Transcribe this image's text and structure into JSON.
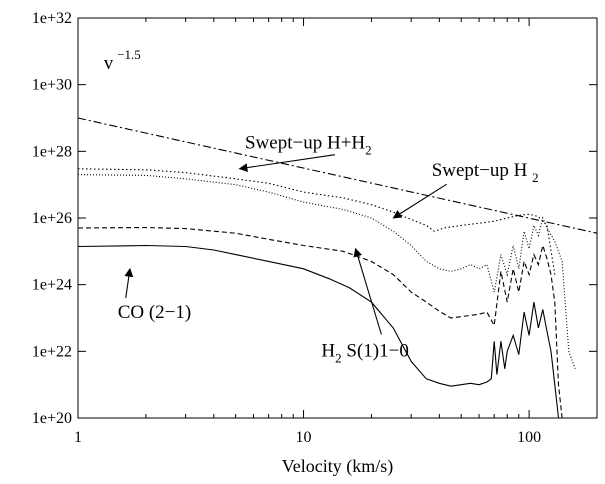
{
  "chart_data": {
    "type": "line",
    "xlabel": "Velocity (km/s)",
    "x_scale": "log",
    "y_scale": "log",
    "xlim": [
      1,
      200
    ],
    "ylim": [
      1e+20,
      1e+32
    ],
    "x_ticks": [
      1,
      10,
      100
    ],
    "x_tick_labels": [
      "1",
      "10",
      "100"
    ],
    "y_ticks": [
      1e+20,
      1e+22,
      1e+24,
      1e+26,
      1e+28,
      1e+30,
      1e+32
    ],
    "y_tick_labels": [
      "1e+20",
      "1e+22",
      "1e+24",
      "1e+26",
      "1e+28",
      "1e+30",
      "1e+32"
    ],
    "grid": false,
    "series": [
      {
        "id": "powerlaw",
        "style": "dashdot",
        "color": "#000000",
        "x": [
          1,
          200
        ],
        "y": [
          1e+29,
          3.5e+25
        ]
      },
      {
        "id": "swept_total",
        "style": "dense-dotted",
        "color": "#000000",
        "x": [
          1,
          2,
          3,
          5,
          7,
          10,
          15,
          20,
          25,
          30,
          35,
          38,
          42,
          50,
          60,
          70,
          80,
          90,
          100,
          110,
          120,
          130
        ],
        "y": [
          3e+27,
          2.8e+27,
          2.3e+27,
          1.5e+27,
          1.1e+27,
          6e+26,
          4e+26,
          2.5e+26,
          1.5e+26,
          9e+25,
          6e+25,
          4e+25,
          5e+25,
          6e+25,
          7e+25,
          8e+25,
          1e+26,
          1.2e+26,
          1.3e+26,
          1.1e+26,
          6e+25,
          2e+24
        ]
      },
      {
        "id": "swept_h2",
        "style": "dotted",
        "color": "#000000",
        "x": [
          1,
          2,
          3,
          5,
          7,
          10,
          15,
          20,
          25,
          30,
          35,
          40,
          45,
          50,
          55,
          60,
          65,
          70,
          75,
          80,
          85,
          90,
          95,
          100,
          105,
          110,
          115,
          120,
          130,
          140,
          150,
          160
        ],
        "y": [
          2e+27,
          1.9e+27,
          1.5e+27,
          1e+27,
          6e+26,
          3e+26,
          1.8e+26,
          1e+26,
          4e+25,
          1.5e+25,
          5e+24,
          3e+24,
          2.5e+24,
          3e+24,
          4e+24,
          3e+24,
          4e+24,
          6e+23,
          8e+24,
          2e+24,
          1.5e+25,
          3e+24,
          4e+25,
          1.2e+25,
          6e+25,
          3e+25,
          1e+26,
          5e+25,
          2e+25,
          5e+24,
          1e+22,
          3e+21
        ]
      },
      {
        "id": "co21",
        "style": "dashed",
        "color": "#000000",
        "x": [
          1,
          2,
          3,
          5,
          7,
          10,
          15,
          20,
          25,
          30,
          35,
          40,
          45,
          50,
          55,
          60,
          65,
          70,
          75,
          80,
          85,
          90,
          95,
          100,
          105,
          110,
          115,
          120,
          125,
          130,
          135,
          140
        ],
        "y": [
          5e+25,
          5.2e+25,
          4.8e+25,
          3.5e+25,
          2.3e+25,
          1.5e+25,
          1e+25,
          5e+24,
          2e+24,
          6e+23,
          3e+23,
          1.6e+23,
          1e+23,
          1.1e+23,
          1.2e+23,
          1.3e+23,
          1.5e+23,
          6e+22,
          2.5e+24,
          3e+23,
          3e+24,
          6e+23,
          5e+24,
          2e+24,
          8e+24,
          4e+24,
          1.5e+25,
          6e+24,
          2e+24,
          3e+23,
          1e+21,
          1e+20
        ]
      },
      {
        "id": "h2s1",
        "style": "solid",
        "color": "#000000",
        "x": [
          1,
          2,
          3,
          4,
          5,
          7,
          10,
          13,
          16,
          20,
          25,
          30,
          35,
          40,
          45,
          50,
          55,
          60,
          65,
          68,
          70,
          72,
          75,
          78,
          80,
          85,
          90,
          95,
          100,
          105,
          110,
          115,
          120,
          125,
          130,
          135
        ],
        "y": [
          1.4e+25,
          1.5e+25,
          1.4e+25,
          1.1e+25,
          8e+24,
          5e+24,
          3e+24,
          1.5e+24,
          8e+23,
          3e+23,
          5e+22,
          5e+21,
          1.5e+21,
          1.1e+21,
          9e+20,
          1e+21,
          1.1e+21,
          1e+21,
          1.2e+21,
          1.5e+21,
          2e+22,
          2e+21,
          2e+22,
          3e+21,
          1e+22,
          3e+22,
          8e+21,
          1.5e+23,
          3e+22,
          3e+23,
          5e+22,
          1.8e+23,
          4e+22,
          1e+22,
          1e+21,
          1e+20
        ]
      }
    ],
    "annotations": [
      {
        "text": "v",
        "sup": "−1.5",
        "at": [
          1.3,
          3e+30
        ],
        "arrow_to": null
      },
      {
        "text": "Swept−up H+H",
        "sub": "2",
        "at": [
          5.5,
          1.2e+28
        ],
        "arrow_to": [
          5.2,
          3e+27
        ]
      },
      {
        "text": "Swept−up H ",
        "sub": "2",
        "at": [
          37,
          1.8e+27
        ],
        "arrow_to": [
          25,
          1e+26
        ]
      },
      {
        "text": "CO (2−1)",
        "at": [
          1.5,
          1e+23
        ],
        "arrow_to": [
          1.7,
          3e+24
        ]
      },
      {
        "text": "H",
        "sub": "2",
        "tail": " S(1)1−0",
        "at": [
          12,
          7e+21
        ],
        "arrow_to": [
          17,
          1.2e+25
        ]
      }
    ]
  }
}
